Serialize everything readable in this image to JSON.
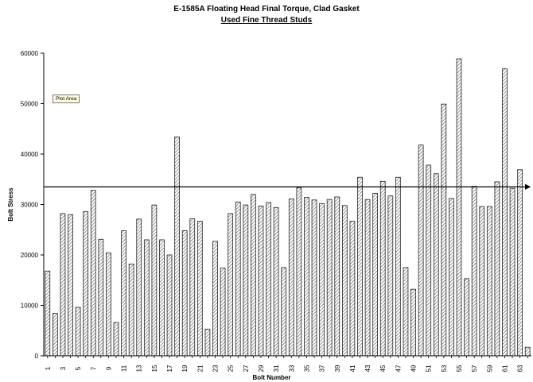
{
  "chart_data": {
    "type": "bar",
    "title": "E-1585A Floating Head Final Torque, Clad Gasket",
    "subtitle": "Used Fine Thread Studs",
    "xlabel": "Bolt Number",
    "ylabel": "Bolt Stress",
    "ylim": [
      0,
      60000
    ],
    "yticks": [
      0,
      10000,
      20000,
      30000,
      40000,
      50000,
      60000
    ],
    "categories": [
      1,
      2,
      3,
      4,
      5,
      6,
      7,
      8,
      9,
      10,
      11,
      12,
      13,
      14,
      15,
      16,
      17,
      18,
      19,
      20,
      21,
      22,
      23,
      24,
      25,
      26,
      27,
      28,
      29,
      30,
      31,
      32,
      33,
      34,
      35,
      36,
      37,
      38,
      39,
      40,
      41,
      42,
      43,
      44,
      45,
      46,
      47,
      48,
      49,
      50,
      51,
      52,
      53,
      54,
      55,
      56,
      57,
      58,
      59,
      60,
      61,
      62,
      63,
      64
    ],
    "xtick_labels": [
      1,
      3,
      5,
      7,
      9,
      11,
      13,
      15,
      17,
      19,
      21,
      23,
      25,
      27,
      29,
      31,
      33,
      35,
      37,
      39,
      41,
      43,
      45,
      47,
      49,
      51,
      53,
      55,
      57,
      59,
      61,
      63
    ],
    "values": [
      16800,
      8400,
      28200,
      28000,
      9600,
      28600,
      32800,
      23100,
      20400,
      6600,
      24800,
      18200,
      27100,
      23000,
      29900,
      23000,
      20000,
      43400,
      24800,
      27200,
      26700,
      5300,
      22700,
      17400,
      28200,
      30500,
      29900,
      32000,
      29700,
      30400,
      29400,
      17500,
      31100,
      33300,
      31400,
      30900,
      30200,
      31000,
      31500,
      29800,
      26700,
      35400,
      31000,
      32200,
      34600,
      31700,
      35400,
      17500,
      13200,
      41800,
      37800,
      36100,
      49900,
      31200,
      58900,
      15300,
      33600,
      29600,
      29600,
      34500,
      56900,
      33200,
      36900,
      1700
    ],
    "reference_line": 33500,
    "grid": false,
    "legend": "none",
    "annotation": "Plot Area"
  }
}
